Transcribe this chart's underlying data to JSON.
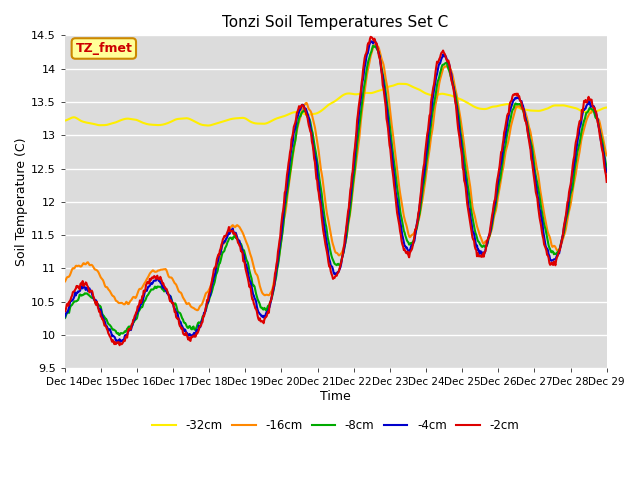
{
  "title": "Tonzi Soil Temperatures Set C",
  "xlabel": "Time",
  "ylabel": "Soil Temperature (C)",
  "ylim": [
    9.5,
    14.5
  ],
  "background_color": "#dcdcdc",
  "annotation_text": "TZ_fmet",
  "annotation_color": "#cc0000",
  "annotation_bg": "#ffff99",
  "annotation_border": "#cc8800",
  "series_colors": {
    "-2cm": "#dd0000",
    "-4cm": "#0000cc",
    "-8cm": "#00aa00",
    "-16cm": "#ff8800",
    "-32cm": "#ffee00"
  },
  "series_linewidths": {
    "-2cm": 1.5,
    "-4cm": 1.5,
    "-8cm": 1.5,
    "-16cm": 1.5,
    "-32cm": 1.5
  },
  "xtick_labels": [
    "Dec 14",
    "Dec 15",
    "Dec 16",
    "Dec 17",
    "Dec 18",
    "Dec 19",
    "Dec 20",
    "Dec 21",
    "Dec 22",
    "Dec 23",
    "Dec 24",
    "Dec 25",
    "Dec 26",
    "Dec 27",
    "Dec 28",
    "Dec 29"
  ],
  "ytick_values": [
    9.5,
    10.0,
    10.5,
    11.0,
    11.5,
    12.0,
    12.5,
    13.0,
    13.5,
    14.0,
    14.5
  ],
  "n_points": 720
}
